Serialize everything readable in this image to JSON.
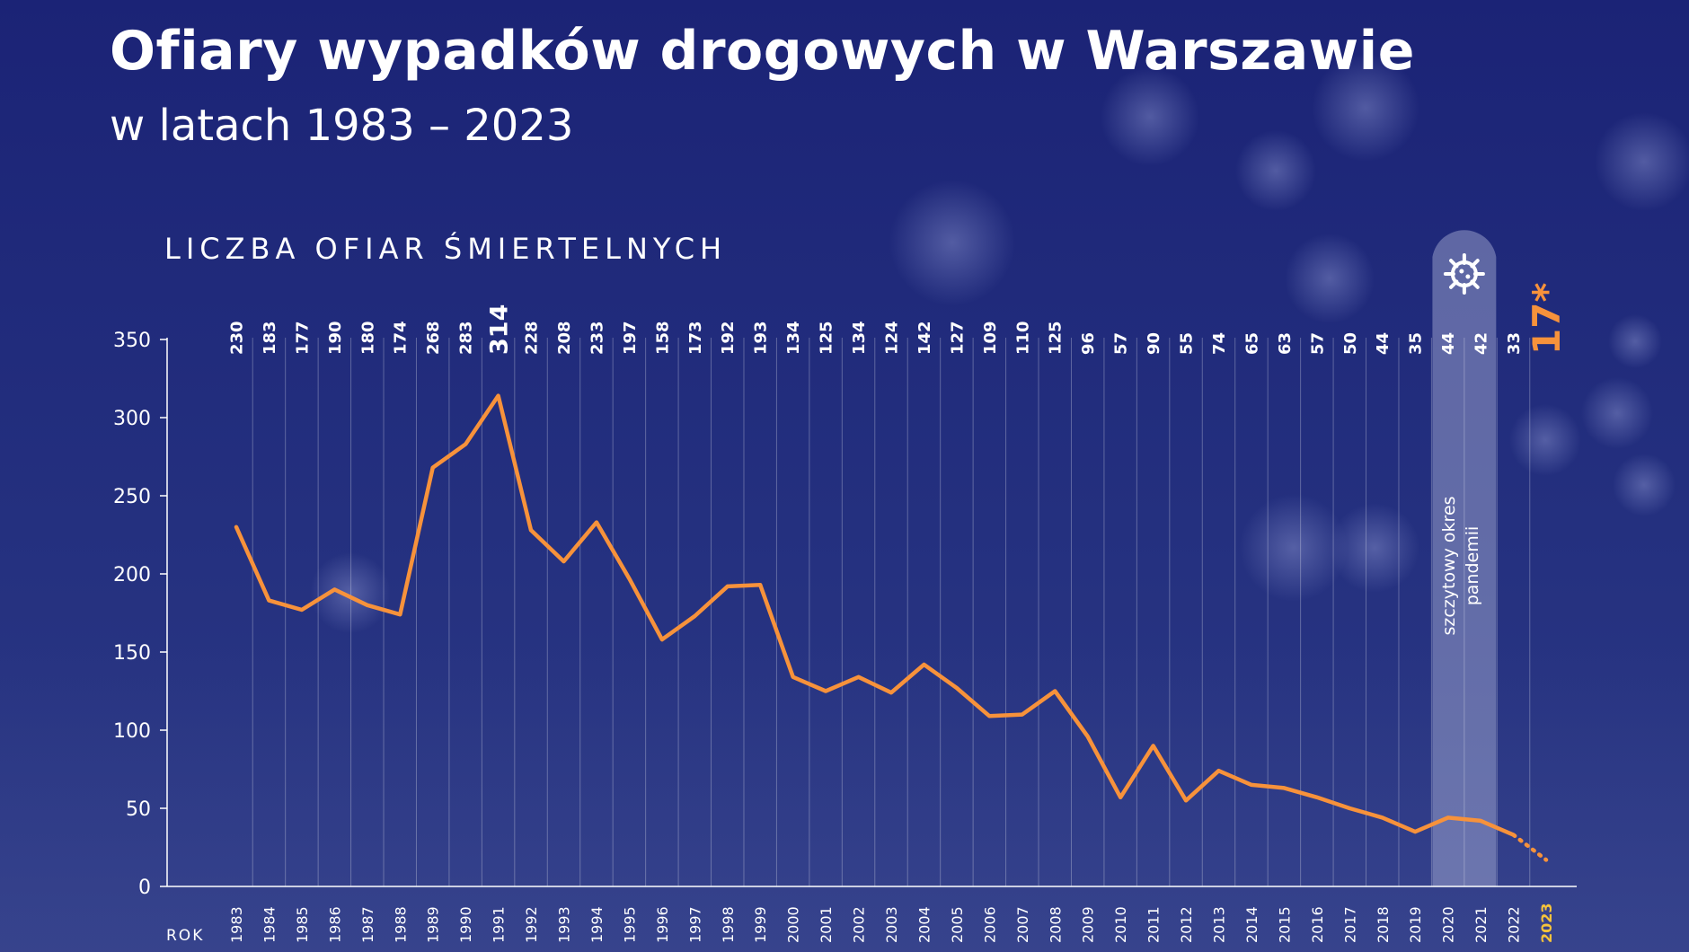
{
  "header": {
    "title": "Ofiary wypadków drogowych w Warszawie",
    "subtitle": "w latach 1983 – 2023"
  },
  "chart_data": {
    "type": "line",
    "ylabel": "LICZBA OFIAR ŚMIERTELNYCH",
    "xlabel": "ROK",
    "ylim": [
      0,
      350
    ],
    "yticks": [
      0,
      50,
      100,
      150,
      200,
      250,
      300,
      350
    ],
    "categories": [
      "1983",
      "1984",
      "1985",
      "1986",
      "1987",
      "1988",
      "1989",
      "1990",
      "1991",
      "1992",
      "1993",
      "1994",
      "1995",
      "1996",
      "1997",
      "1998",
      "1999",
      "2000",
      "2001",
      "2002",
      "2003",
      "2004",
      "2005",
      "2006",
      "2007",
      "2008",
      "2009",
      "2010",
      "2011",
      "2012",
      "2013",
      "2014",
      "2015",
      "2016",
      "2017",
      "2018",
      "2019",
      "2020",
      "2021",
      "2022",
      "2023"
    ],
    "values": [
      230,
      183,
      177,
      190,
      180,
      174,
      268,
      283,
      314,
      228,
      208,
      233,
      197,
      158,
      173,
      192,
      193,
      134,
      125,
      134,
      124,
      142,
      127,
      109,
      110,
      125,
      96,
      57,
      90,
      55,
      74,
      65,
      63,
      57,
      50,
      44,
      35,
      44,
      42,
      33,
      17
    ],
    "value_labels": [
      "230",
      "183",
      "177",
      "190",
      "180",
      "174",
      "268",
      "283",
      "314",
      "228",
      "208",
      "233",
      "197",
      "158",
      "173",
      "192",
      "193",
      "134",
      "125",
      "134",
      "124",
      "142",
      "127",
      "109",
      "110",
      "125",
      "96",
      "57",
      "90",
      "55",
      "74",
      "65",
      "63",
      "57",
      "50",
      "44",
      "35",
      "44",
      "42",
      "33",
      "17*"
    ],
    "highlight_max_index": 8,
    "highlight_last_index": 40,
    "dotted_segment_from_index": 39,
    "grid": "vertical",
    "pandemic_band": {
      "label": "szczytowy okres pandemii",
      "label_line1": "szczytowy okres",
      "label_line2": "pandemii",
      "icon": "virus-icon",
      "start": "2020",
      "end": "2021"
    },
    "colors": {
      "line": "#f7923b",
      "background": "#1f2878",
      "highlight_year": "#f5c33b",
      "text": "#ffffff"
    }
  }
}
